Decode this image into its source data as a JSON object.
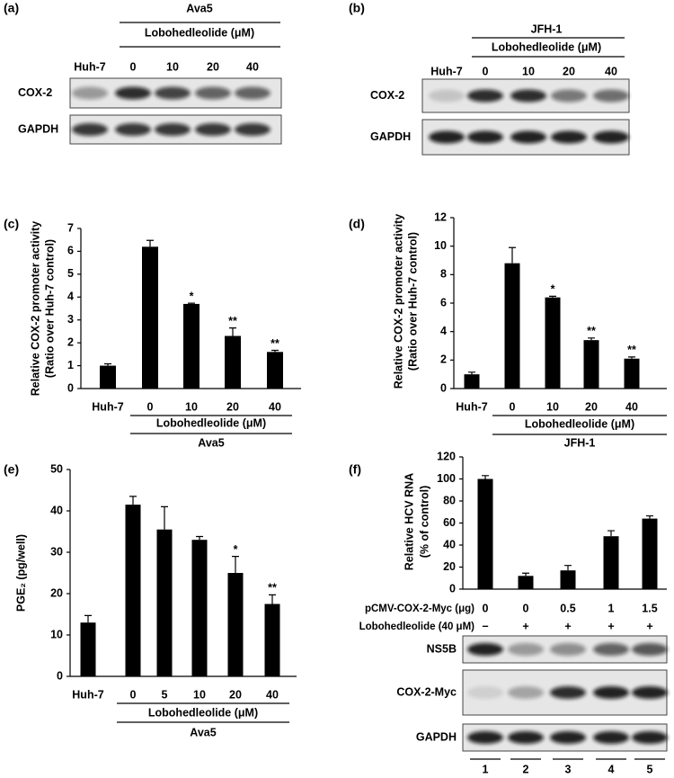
{
  "blots": [
    {
      "panel_label": "(a)",
      "cell_line": "Ava5",
      "treatment": "Lobohedleolide (μM)",
      "lanes": [
        "Huh-7",
        "0",
        "10",
        "20",
        "40"
      ],
      "rows": [
        "COX-2",
        "GAPDH"
      ]
    },
    {
      "panel_label": "(b)",
      "cell_line": "JFH-1",
      "treatment": "Lobohedleolide (μM)",
      "lanes": [
        "Huh-7",
        "0",
        "10",
        "20",
        "40"
      ],
      "rows": [
        "COX-2",
        "GAPDH"
      ]
    },
    {
      "rows": [
        "NS5B",
        "COX-2-Myc",
        "GAPDH"
      ],
      "lanes": [
        "1",
        "2",
        "3",
        "4",
        "5"
      ]
    }
  ],
  "chart_data": [
    {
      "type": "bar",
      "panel_label": "(c)",
      "y_label": [
        "Relative COX-2 promoter activity",
        "(Ratio over Huh-7 control)"
      ],
      "categories": [
        "Huh-7",
        "0",
        "10",
        "20",
        "40"
      ],
      "values": [
        1.0,
        6.2,
        3.7,
        2.3,
        1.6
      ],
      "errors": [
        0.08,
        0.28,
        0.03,
        0.35,
        0.07
      ],
      "annotations": [
        null,
        null,
        "*",
        "**",
        "**"
      ],
      "treatment": "Lobohedleolide (μM)",
      "cell_line": "Ava5",
      "ylim": [
        0,
        7
      ],
      "yticks": [
        0,
        1,
        2,
        3,
        4,
        5,
        6,
        7
      ],
      "color": "#000000"
    },
    {
      "type": "bar",
      "panel_label": "(d)",
      "y_label": [
        "Relative COX-2 promoter activity",
        "(Ratio over Huh-7 control)"
      ],
      "categories": [
        "Huh-7",
        "0",
        "10",
        "20",
        "40"
      ],
      "values": [
        1.0,
        8.8,
        6.4,
        3.4,
        2.1
      ],
      "errors": [
        0.15,
        1.1,
        0.08,
        0.15,
        0.12
      ],
      "annotations": [
        null,
        null,
        "*",
        "**",
        "**"
      ],
      "treatment": "Lobohedleolide (μM)",
      "cell_line": "JFH-1",
      "ylim": [
        0,
        12
      ],
      "yticks": [
        0,
        2,
        4,
        6,
        8,
        10,
        12
      ],
      "color": "#000000"
    },
    {
      "type": "bar",
      "panel_label": "(e)",
      "y_label": [
        "PGE₂ (pg/well)"
      ],
      "categories": [
        "Huh-7",
        "0",
        "5",
        "10",
        "20",
        "40"
      ],
      "values": [
        13,
        41.5,
        35.5,
        33,
        25,
        17.5
      ],
      "errors": [
        1.7,
        2,
        5.5,
        0.8,
        4,
        2.2
      ],
      "annotations": [
        null,
        null,
        null,
        null,
        "*",
        "**"
      ],
      "treatment": "Lobohedleolide (μM)",
      "cell_line": "Ava5",
      "ylim": [
        0,
        50
      ],
      "yticks": [
        0,
        10,
        20,
        30,
        40,
        50
      ],
      "color": "#000000"
    },
    {
      "type": "bar",
      "panel_label": "(f)",
      "y_label": [
        "Relative HCV RNA",
        "(% of control)"
      ],
      "category_title": "pCMV-COX-2-Myc (μg)",
      "categories": [
        "0",
        "0",
        "0.5",
        "1",
        "1.5"
      ],
      "second_row_title": "Lobohedleolide (40 μM)",
      "second_row": [
        "−",
        "+",
        "+",
        "+",
        "+"
      ],
      "values": [
        100,
        12,
        17,
        48,
        64
      ],
      "errors": [
        3,
        2.5,
        4.5,
        5,
        2.5
      ],
      "ylim": [
        0,
        120
      ],
      "yticks": [
        0,
        20,
        40,
        60,
        80,
        100,
        120
      ],
      "color": "#000000"
    }
  ]
}
